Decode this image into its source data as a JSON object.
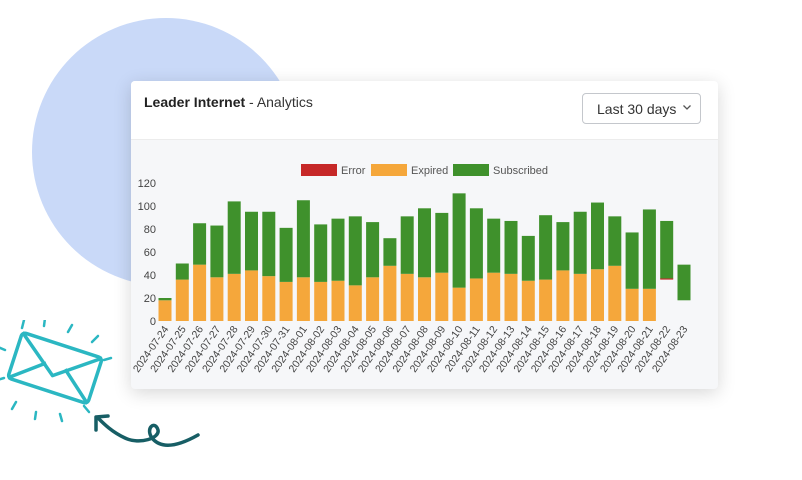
{
  "header": {
    "brand": "Leader Internet",
    "separator": " - ",
    "section": "Analytics"
  },
  "range_select": {
    "selected": "Last 30 days"
  },
  "colors": {
    "error": "#c62828",
    "expired": "#f5a73b",
    "subscribed": "#3f912c",
    "blob": "#c9d9f8",
    "mail": "#2bb7c2",
    "arrow": "#175e65"
  },
  "icons": [
    "envelope-icon",
    "curved-arrow-icon",
    "chevron-down-icon"
  ],
  "chart_data": {
    "type": "bar",
    "stacked": true,
    "legend_position": "top-center",
    "grid": false,
    "ylim": [
      0,
      120
    ],
    "yticks": [
      0,
      20,
      40,
      60,
      80,
      100,
      120
    ],
    "categories": [
      "2024-07-24",
      "2024-07-25",
      "2024-07-26",
      "2024-07-27",
      "2024-07-28",
      "2024-07-29",
      "2024-07-30",
      "2024-07-31",
      "2024-08-01",
      "2024-08-02",
      "2024-08-03",
      "2024-08-04",
      "2024-08-05",
      "2024-08-06",
      "2024-08-07",
      "2024-08-08",
      "2024-08-09",
      "2024-08-10",
      "2024-08-11",
      "2024-08-12",
      "2024-08-13",
      "2024-08-14",
      "2024-08-15",
      "2024-08-16",
      "2024-08-17",
      "2024-08-18",
      "2024-08-19",
      "2024-08-20",
      "2024-08-21",
      "2024-08-22",
      "2024-08-23"
    ],
    "series": [
      {
        "name": "Error",
        "color": "#c62828",
        "values": [
          0,
          0,
          0,
          0,
          0,
          0,
          0,
          0,
          0,
          0,
          0,
          0,
          0,
          0,
          0,
          0,
          0,
          0,
          0,
          0,
          0,
          0,
          0,
          0,
          0,
          0,
          0,
          0,
          0,
          1,
          0
        ]
      },
      {
        "name": "Expired",
        "color": "#f5a73b",
        "values": [
          18,
          36,
          49,
          38,
          41,
          44,
          39,
          34,
          38,
          34,
          35,
          31,
          38,
          48,
          41,
          38,
          42,
          29,
          37,
          42,
          41,
          35,
          36,
          44,
          41,
          45,
          48,
          28,
          28,
          0,
          0
        ]
      },
      {
        "name": "Subscribed",
        "color": "#3f912c",
        "values": [
          2,
          14,
          36,
          45,
          63,
          51,
          56,
          47,
          67,
          50,
          54,
          60,
          48,
          24,
          50,
          60,
          52,
          82,
          61,
          47,
          46,
          39,
          56,
          42,
          54,
          58,
          43,
          49,
          69,
          50,
          31
        ]
      }
    ],
    "floating_bases": [
      0,
      0,
      0,
      0,
      0,
      0,
      0,
      0,
      0,
      0,
      0,
      0,
      0,
      0,
      0,
      0,
      0,
      0,
      0,
      0,
      0,
      0,
      0,
      0,
      0,
      0,
      0,
      0,
      0,
      36,
      18
    ]
  }
}
